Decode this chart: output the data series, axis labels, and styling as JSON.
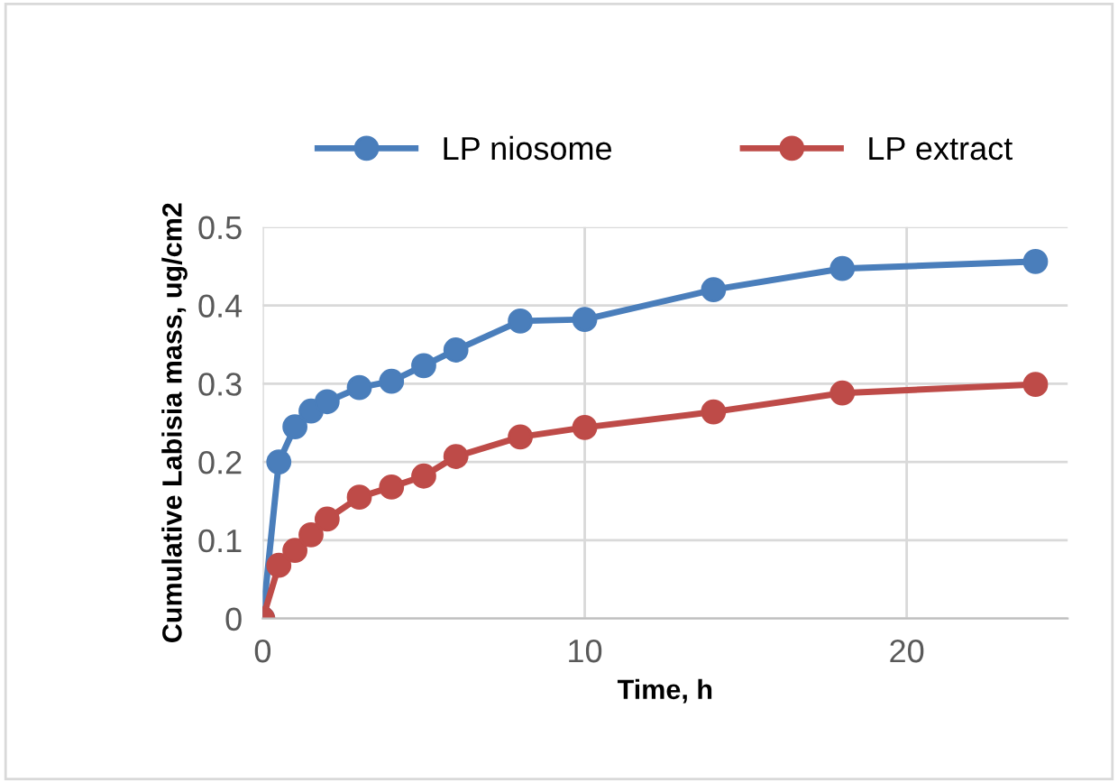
{
  "chart_data": {
    "type": "line",
    "xlabel": "Time, h",
    "ylabel": "Cumulative Labisia mass, ug/cm2",
    "x": [
      0,
      0.5,
      1,
      1.5,
      2,
      3,
      4,
      5,
      6,
      8,
      10,
      14,
      18,
      24
    ],
    "series": [
      {
        "name": "LP niosome",
        "color": "#4a7ebb",
        "values": [
          0,
          0.2,
          0.245,
          0.265,
          0.277,
          0.295,
          0.303,
          0.323,
          0.343,
          0.38,
          0.382,
          0.42,
          0.447,
          0.456
        ]
      },
      {
        "name": "LP extract",
        "color": "#be4b48",
        "values": [
          0,
          0.068,
          0.087,
          0.107,
          0.127,
          0.155,
          0.168,
          0.182,
          0.207,
          0.232,
          0.244,
          0.264,
          0.288,
          0.299
        ]
      }
    ],
    "xlim": [
      0,
      25
    ],
    "xticks": [
      0,
      10,
      20
    ],
    "ylim": [
      0,
      0.5
    ],
    "yticks": [
      0,
      0.1,
      0.2,
      0.3,
      0.4,
      0.5
    ],
    "grid": true,
    "legend": "top",
    "marker": "circle",
    "line_style": "solid"
  }
}
